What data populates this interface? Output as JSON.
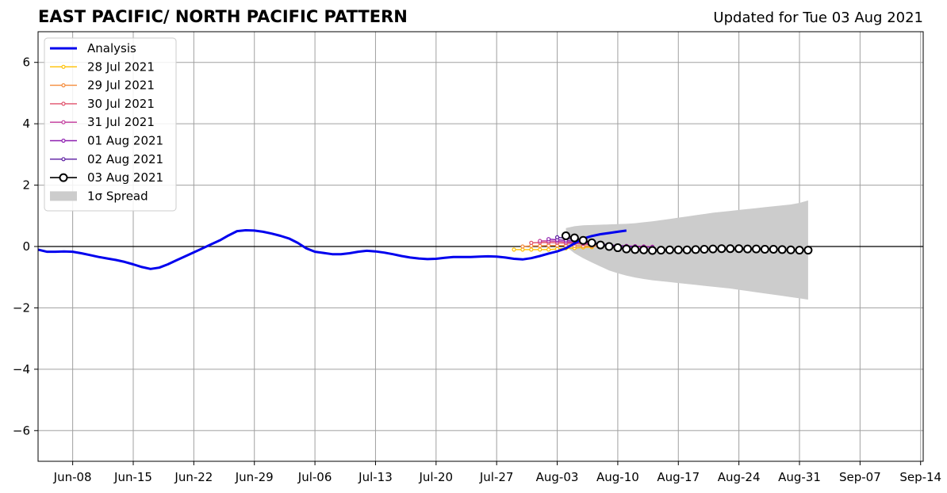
{
  "header": {
    "title": "EAST PACIFIC/ NORTH PACIFIC PATTERN",
    "updated": "Updated for Tue 03 Aug 2021"
  },
  "chart_data": {
    "type": "line",
    "title": "EAST PACIFIC/ NORTH PACIFIC PATTERN",
    "subtitle": "Updated for Tue 03 Aug 2021",
    "xlabel": "",
    "ylabel": "",
    "ylim": [
      -7,
      7
    ],
    "xlim": [
      "2021-06-04",
      "2021-09-14"
    ],
    "yticks": [
      -6,
      -4,
      -2,
      0,
      2,
      4,
      6
    ],
    "ytick_labels": [
      "−6",
      "−4",
      "−2",
      "0",
      "2",
      "4",
      "6"
    ],
    "xticks": [
      "2021-06-08",
      "2021-06-15",
      "2021-06-22",
      "2021-06-29",
      "2021-07-06",
      "2021-07-13",
      "2021-07-20",
      "2021-07-27",
      "2021-08-03",
      "2021-08-10",
      "2021-08-17",
      "2021-08-24",
      "2021-08-31",
      "2021-09-07",
      "2021-09-14"
    ],
    "xtick_labels": [
      "Jun-08",
      "Jun-15",
      "Jun-22",
      "Jun-29",
      "Jul-06",
      "Jul-13",
      "Jul-20",
      "Jul-27",
      "Aug-03",
      "Aug-10",
      "Aug-17",
      "Aug-24",
      "Aug-31",
      "Sep-07",
      "Sep-14"
    ],
    "grid": true,
    "legend_position": "upper-left",
    "series": [
      {
        "name": "Analysis",
        "color": "#0000ee",
        "style": "thick-line",
        "start": "2021-06-04",
        "values": [
          -0.1,
          -0.17,
          -0.17,
          -0.16,
          -0.17,
          -0.22,
          -0.28,
          -0.34,
          -0.39,
          -0.44,
          -0.5,
          -0.58,
          -0.67,
          -0.73,
          -0.69,
          -0.58,
          -0.45,
          -0.32,
          -0.19,
          -0.06,
          0.07,
          0.2,
          0.36,
          0.5,
          0.53,
          0.52,
          0.48,
          0.42,
          0.35,
          0.26,
          0.12,
          -0.06,
          -0.17,
          -0.21,
          -0.25,
          -0.25,
          -0.22,
          -0.17,
          -0.14,
          -0.16,
          -0.2,
          -0.25,
          -0.31,
          -0.36,
          -0.39,
          -0.41,
          -0.4,
          -0.37,
          -0.34,
          -0.34,
          -0.34,
          -0.33,
          -0.32,
          -0.33,
          -0.36,
          -0.4,
          -0.42,
          -0.38,
          -0.31,
          -0.23,
          -0.16,
          -0.06,
          0.1,
          0.26,
          0.34,
          0.4,
          0.44,
          0.48,
          0.52
        ]
      },
      {
        "name": "28 Jul 2021",
        "color": "#ffc000",
        "style": "small-markers",
        "start": "2021-07-29",
        "values": [
          -0.1,
          -0.1,
          -0.1,
          -0.1,
          -0.1,
          -0.08,
          -0.06,
          -0.05,
          -0.03,
          -0.02
        ]
      },
      {
        "name": "29 Jul 2021",
        "color": "#f58b3a",
        "style": "small-markers",
        "start": "2021-07-30",
        "values": [
          0.0,
          0.02,
          0.02,
          0.03,
          0.03,
          0.03,
          0.02,
          0.01,
          0.01,
          0.0
        ]
      },
      {
        "name": "30 Jul 2021",
        "color": "#e0506a",
        "style": "small-markers",
        "start": "2021-07-31",
        "values": [
          0.12,
          0.13,
          0.13,
          0.12,
          0.11,
          0.1,
          0.08,
          0.06,
          0.05,
          0.03,
          0.02,
          0.01,
          0.0,
          0.0,
          -0.01
        ]
      },
      {
        "name": "31 Jul 2021",
        "color": "#c0359a",
        "style": "small-markers",
        "start": "2021-08-01",
        "values": [
          0.18,
          0.18,
          0.17,
          0.15,
          0.13,
          0.1,
          0.08,
          0.06,
          0.04,
          0.03,
          0.02,
          0.01,
          0.0,
          -0.01
        ]
      },
      {
        "name": "01 Aug 2021",
        "color": "#8e1eb0",
        "style": "small-markers",
        "start": "2021-08-02",
        "values": [
          0.24,
          0.22,
          0.2,
          0.17,
          0.14,
          0.11,
          0.08,
          0.05,
          0.03,
          0.01,
          0.0,
          -0.01,
          -0.02
        ]
      },
      {
        "name": "02 Aug 2021",
        "color": "#5a1aa0",
        "style": "small-markers",
        "start": "2021-08-03",
        "values": [
          0.3,
          0.27,
          0.23,
          0.18,
          0.13,
          0.09,
          0.05,
          0.02,
          0.0,
          -0.01
        ]
      },
      {
        "name": "03 Aug 2021",
        "color": "#000000",
        "style": "large-open-markers",
        "start": "2021-08-04",
        "values": [
          0.35,
          0.28,
          0.2,
          0.12,
          0.05,
          0.0,
          -0.04,
          -0.08,
          -0.1,
          -0.11,
          -0.13,
          -0.12,
          -0.11,
          -0.11,
          -0.11,
          -0.1,
          -0.09,
          -0.08,
          -0.07,
          -0.07,
          -0.07,
          -0.08,
          -0.08,
          -0.09,
          -0.09,
          -0.1,
          -0.11,
          -0.12,
          -0.12
        ]
      }
    ],
    "spread": {
      "name": "1σ Spread",
      "color": "#cccccc",
      "start": "2021-08-04",
      "upper": [
        0.6,
        0.66,
        0.69,
        0.7,
        0.71,
        0.72,
        0.73,
        0.74,
        0.76,
        0.79,
        0.82,
        0.86,
        0.9,
        0.94,
        0.98,
        1.02,
        1.06,
        1.1,
        1.13,
        1.16,
        1.19,
        1.22,
        1.25,
        1.28,
        1.31,
        1.34,
        1.37,
        1.42,
        1.5
      ],
      "lower": [
        0.0,
        -0.22,
        -0.38,
        -0.52,
        -0.65,
        -0.78,
        -0.87,
        -0.95,
        -1.01,
        -1.06,
        -1.1,
        -1.13,
        -1.16,
        -1.19,
        -1.22,
        -1.25,
        -1.28,
        -1.31,
        -1.34,
        -1.37,
        -1.41,
        -1.45,
        -1.49,
        -1.53,
        -1.57,
        -1.61,
        -1.65,
        -1.69,
        -1.73
      ]
    }
  }
}
